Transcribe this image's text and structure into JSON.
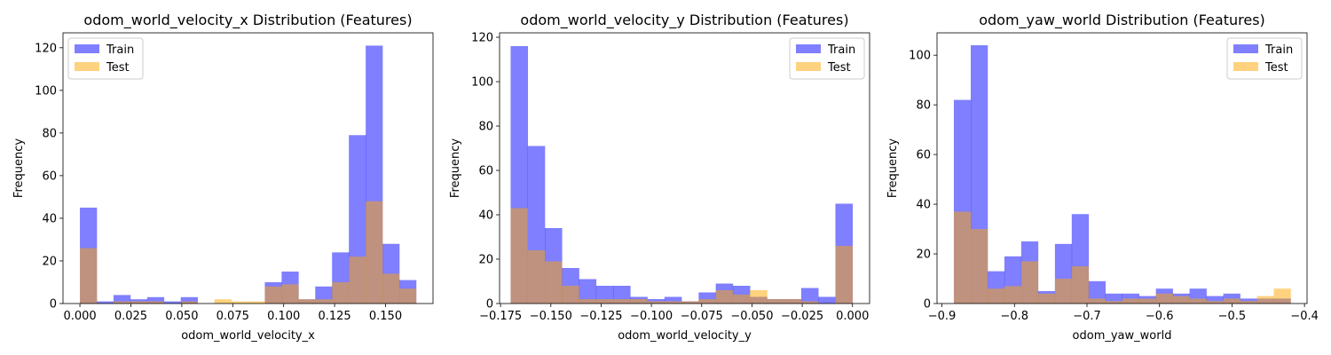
{
  "colors": {
    "train": "#0000ff",
    "test": "#ffa500",
    "bar_alpha": 0.5
  },
  "chart_data": [
    {
      "type": "bar",
      "title": "odom_world_velocity_x Distribution (Features)",
      "xlabel": "odom_world_velocity_x",
      "ylabel": "Frequency",
      "xlim": [
        -0.0083,
        0.1733
      ],
      "ylim": [
        0,
        127
      ],
      "xticks": [
        0.0,
        0.025,
        0.05,
        0.075,
        0.1,
        0.125,
        0.15
      ],
      "xtick_labels": [
        "0.000",
        "0.025",
        "0.050",
        "0.075",
        "0.100",
        "0.125",
        "0.150"
      ],
      "yticks": [
        0,
        20,
        40,
        60,
        80,
        100,
        120
      ],
      "ytick_labels": [
        "0",
        "20",
        "40",
        "60",
        "80",
        "100",
        "120"
      ],
      "legend": "top-left",
      "series": [
        {
          "name": "Train",
          "bin_edges": [
            0.0,
            0.00825,
            0.0165,
            0.02475,
            0.033,
            0.04125,
            0.0495,
            0.05775,
            0.066,
            0.07425,
            0.0825,
            0.09075,
            0.099,
            0.10725,
            0.1155,
            0.12375,
            0.132,
            0.14025,
            0.1485,
            0.15675,
            0.165
          ],
          "counts": [
            45,
            1,
            4,
            2,
            3,
            1,
            3,
            0,
            0,
            0,
            0,
            10,
            15,
            2,
            8,
            24,
            79,
            121,
            28,
            11
          ]
        },
        {
          "name": "Test",
          "bin_edges": [
            0.0,
            0.00825,
            0.0165,
            0.02475,
            0.033,
            0.04125,
            0.0495,
            0.05775,
            0.066,
            0.07425,
            0.0825,
            0.09075,
            0.099,
            0.10725,
            0.1155,
            0.12375,
            0.132,
            0.14025,
            0.1485,
            0.15675,
            0.165
          ],
          "counts": [
            26,
            0,
            1,
            1,
            1,
            0,
            1,
            0,
            2,
            1,
            1,
            8,
            9,
            2,
            2,
            10,
            22,
            48,
            14,
            7
          ]
        }
      ]
    },
    {
      "type": "bar",
      "title": "odom_world_velocity_y Distribution (Features)",
      "xlabel": "odom_world_velocity_y",
      "ylabel": "Frequency",
      "xlim": [
        -0.1755,
        0.0085
      ],
      "ylim": [
        0,
        122
      ],
      "xticks": [
        -0.175,
        -0.15,
        -0.125,
        -0.1,
        -0.075,
        -0.05,
        -0.025,
        0.0
      ],
      "xtick_labels": [
        "−0.175",
        "−0.150",
        "−0.125",
        "−0.100",
        "−0.075",
        "−0.050",
        "−0.025",
        "0.000"
      ],
      "yticks": [
        0,
        20,
        40,
        60,
        80,
        100,
        120
      ],
      "ytick_labels": [
        "0",
        "20",
        "40",
        "60",
        "80",
        "100",
        "120"
      ],
      "legend": "top-right",
      "series": [
        {
          "name": "Train",
          "bin_edges": [
            -0.17,
            -0.1615,
            -0.153,
            -0.1445,
            -0.136,
            -0.1275,
            -0.119,
            -0.1105,
            -0.102,
            -0.0935,
            -0.085,
            -0.0765,
            -0.068,
            -0.0595,
            -0.051,
            -0.0425,
            -0.034,
            -0.0255,
            -0.017,
            -0.0085,
            0.0
          ],
          "counts": [
            116,
            71,
            34,
            16,
            11,
            8,
            8,
            3,
            2,
            3,
            1,
            5,
            9,
            8,
            3,
            2,
            2,
            7,
            3,
            45
          ]
        },
        {
          "name": "Test",
          "bin_edges": [
            -0.17,
            -0.1615,
            -0.153,
            -0.1445,
            -0.136,
            -0.1275,
            -0.119,
            -0.1105,
            -0.102,
            -0.0935,
            -0.085,
            -0.0765,
            -0.068,
            -0.0595,
            -0.051,
            -0.0425,
            -0.034,
            -0.0255,
            -0.017,
            -0.0085,
            0.0
          ],
          "counts": [
            43,
            24,
            19,
            8,
            2,
            2,
            2,
            2,
            1,
            1,
            1,
            2,
            6,
            4,
            6,
            2,
            2,
            1,
            0,
            26
          ]
        }
      ]
    },
    {
      "type": "bar",
      "title": "odom_yaw_world Distribution (Features)",
      "xlabel": "odom_yaw_world",
      "ylabel": "Frequency",
      "xlim": [
        -0.9068,
        -0.3965
      ],
      "ylim": [
        0,
        109
      ],
      "xticks": [
        -0.9,
        -0.8,
        -0.7,
        -0.6,
        -0.5,
        -0.4
      ],
      "xtick_labels": [
        "−0.9",
        "−0.8",
        "−0.7",
        "−0.6",
        "−0.5",
        "−0.4"
      ],
      "yticks": [
        0,
        20,
        40,
        60,
        80,
        100
      ],
      "ytick_labels": [
        "0",
        "20",
        "40",
        "60",
        "80",
        "100"
      ],
      "legend": "top-right",
      "series": [
        {
          "name": "Train",
          "bin_edges": [
            -0.8836,
            -0.8603,
            -0.8371,
            -0.8139,
            -0.7907,
            -0.7675,
            -0.7442,
            -0.721,
            -0.6978,
            -0.6746,
            -0.6514,
            -0.6281,
            -0.6049,
            -0.5817,
            -0.5585,
            -0.5353,
            -0.512,
            -0.4888,
            -0.4656,
            -0.4424,
            -0.4192
          ],
          "counts": [
            82,
            104,
            13,
            19,
            25,
            5,
            24,
            36,
            9,
            4,
            4,
            3,
            6,
            4,
            6,
            3,
            4,
            2,
            2,
            2
          ]
        },
        {
          "name": "Test",
          "bin_edges": [
            -0.8836,
            -0.8603,
            -0.8371,
            -0.8139,
            -0.7907,
            -0.7675,
            -0.7442,
            -0.721,
            -0.6978,
            -0.6746,
            -0.6514,
            -0.6281,
            -0.6049,
            -0.5817,
            -0.5585,
            -0.5353,
            -0.512,
            -0.4888,
            -0.4656,
            -0.4424,
            -0.4192
          ],
          "counts": [
            37,
            30,
            6,
            7,
            17,
            4,
            10,
            15,
            2,
            1,
            2,
            2,
            4,
            3,
            2,
            1,
            2,
            1,
            3,
            6
          ]
        }
      ]
    }
  ]
}
